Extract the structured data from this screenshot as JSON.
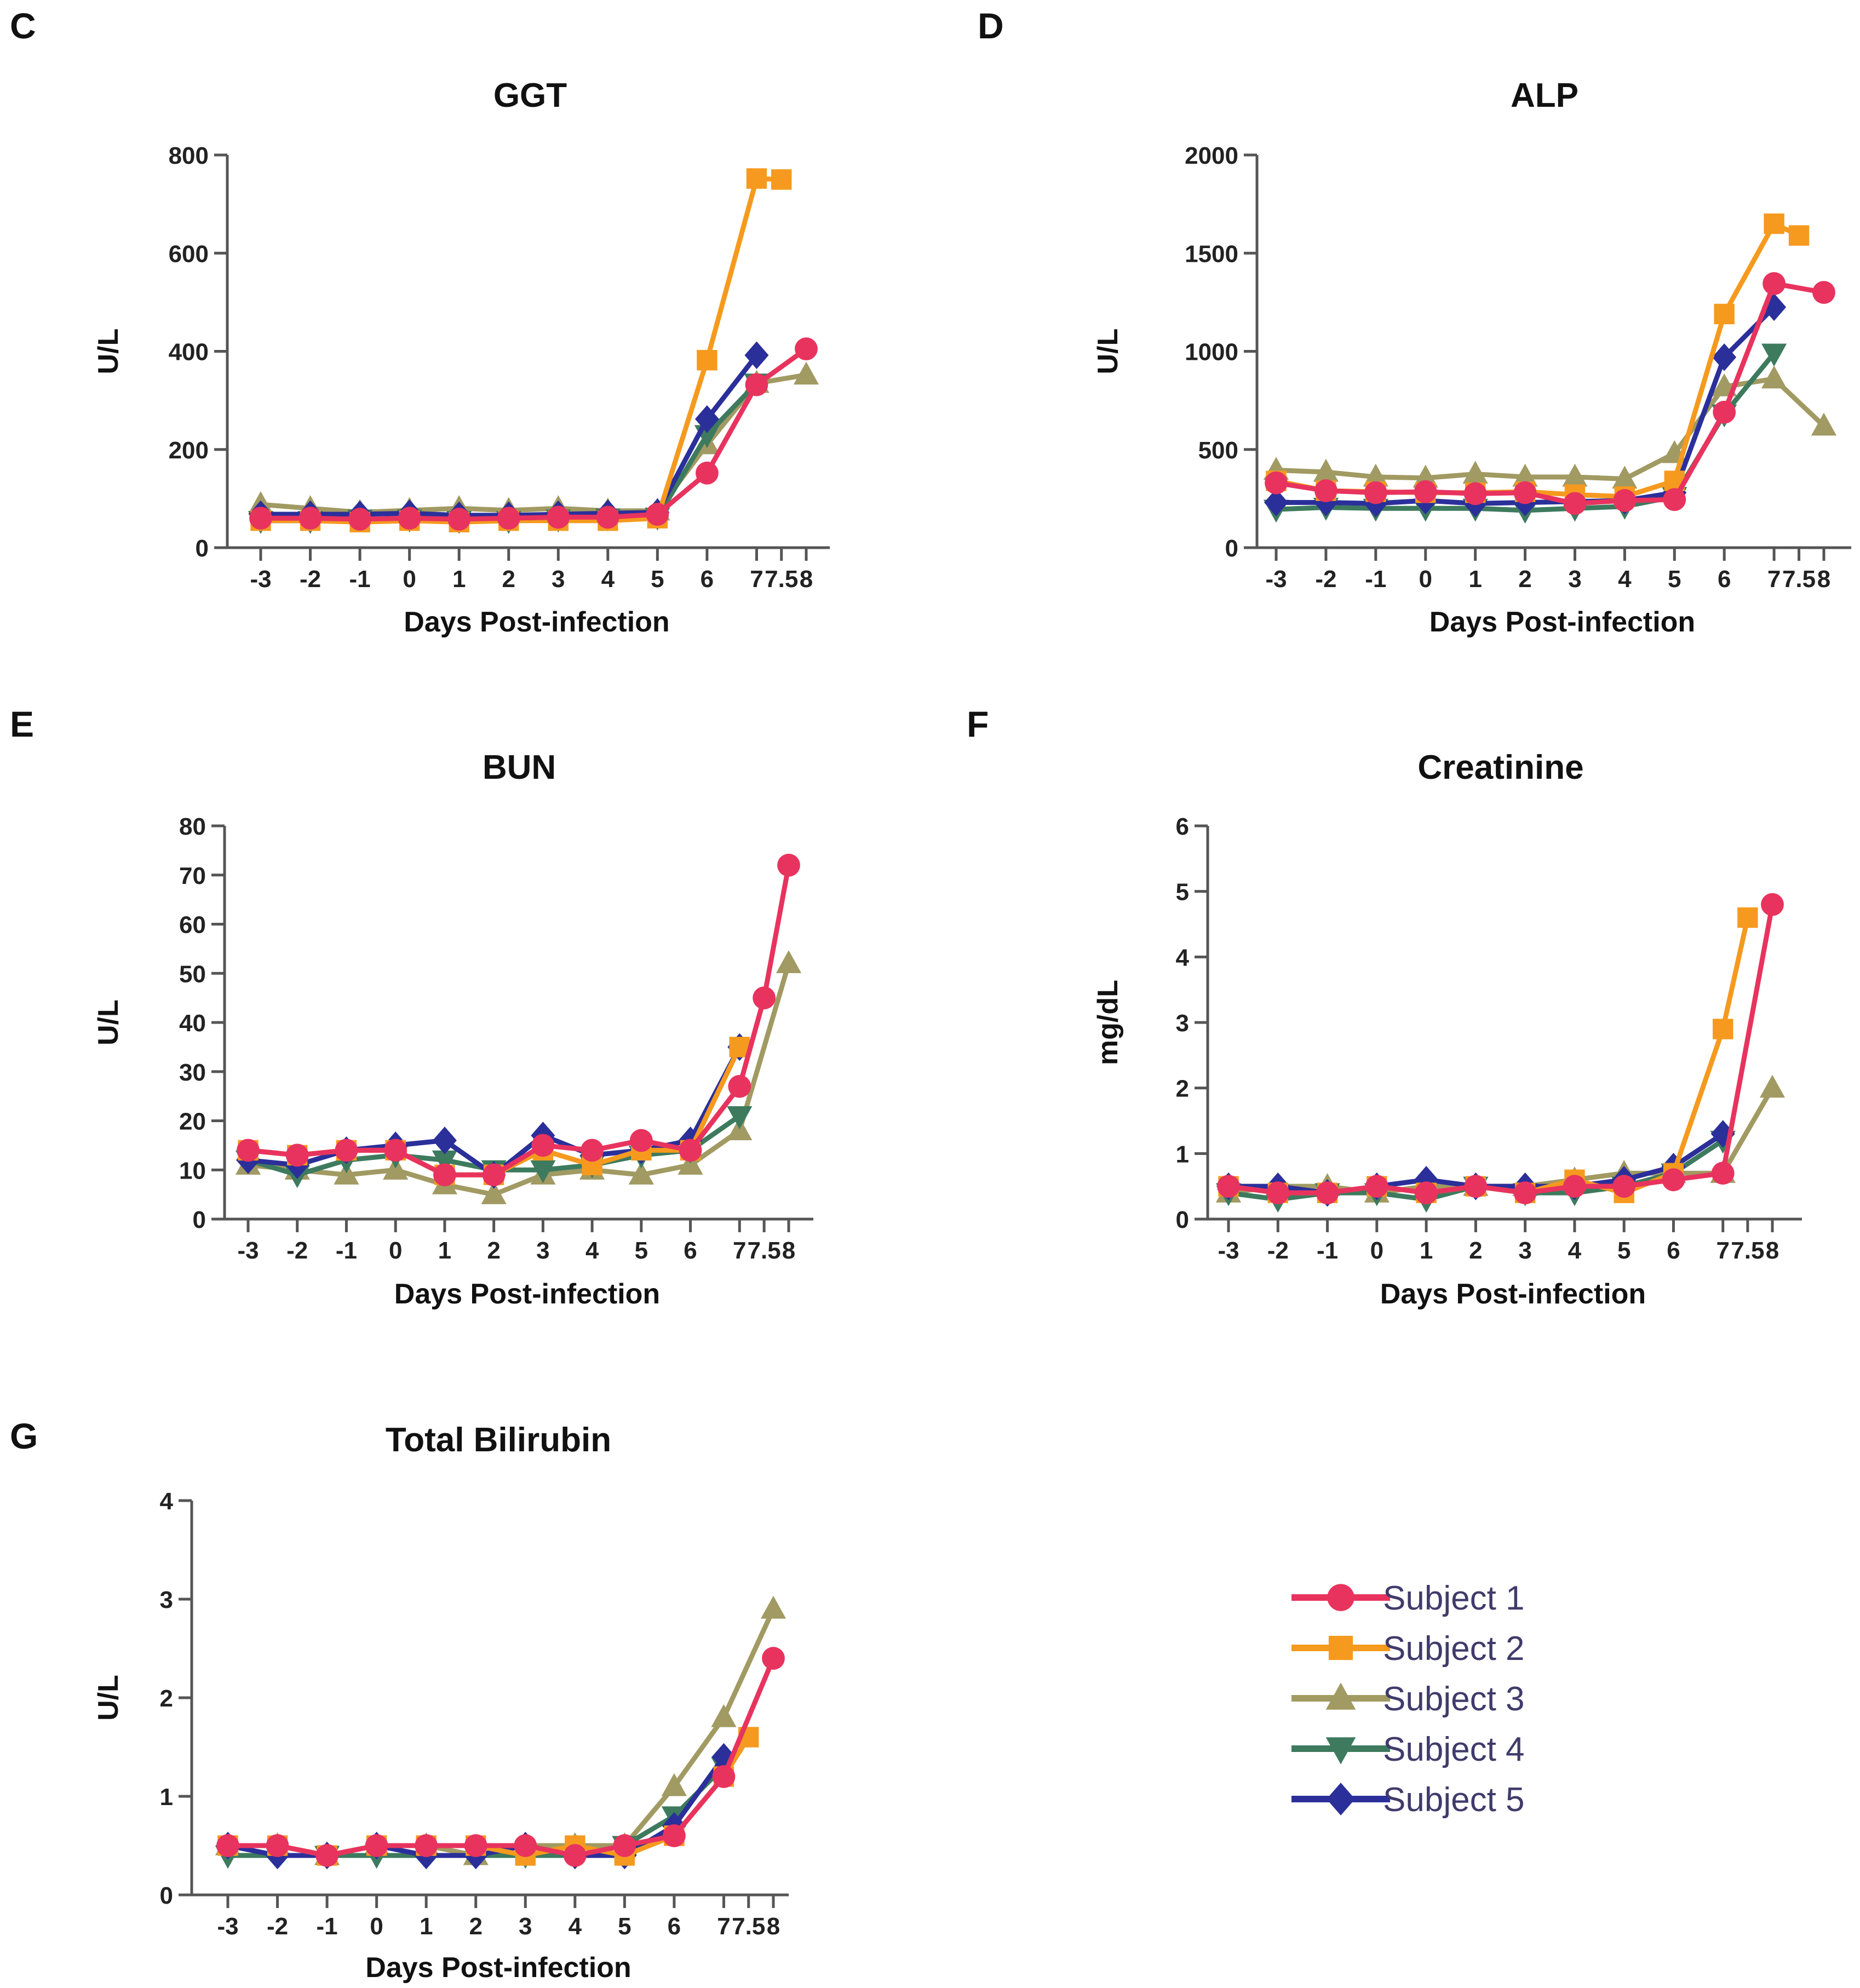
{
  "chart_data": [
    {
      "type": "line",
      "panel": "C",
      "title": "GGT",
      "xlabel": "Days Post-infection",
      "ylabel": "U/L",
      "ylim": [
        0,
        800
      ],
      "yticks": [
        0,
        200,
        400,
        600,
        800
      ],
      "x_tick_labels": [
        "-3",
        "-2",
        "-1",
        "0",
        "1",
        "2",
        "3",
        "4",
        "5",
        "6",
        "7",
        "7.5",
        "8"
      ],
      "series": [
        {
          "name": "Subject 3",
          "x": [
            -3,
            -2,
            -1,
            0,
            1,
            2,
            3,
            4,
            5,
            6,
            7,
            8
          ],
          "values": [
            88,
            80,
            72,
            76,
            80,
            76,
            80,
            75,
            75,
            210,
            335,
            352
          ]
        },
        {
          "name": "Subject 4",
          "x": [
            -3,
            -2,
            -1,
            0,
            1,
            2,
            3,
            4,
            5,
            6,
            7
          ],
          "values": [
            55,
            55,
            58,
            58,
            55,
            55,
            58,
            60,
            62,
            230,
            335
          ]
        },
        {
          "name": "Subject 5",
          "x": [
            -3,
            -2,
            -1,
            0,
            1,
            2,
            3,
            4,
            5,
            6,
            7
          ],
          "values": [
            68,
            68,
            68,
            70,
            66,
            66,
            68,
            70,
            72,
            262,
            392
          ]
        },
        {
          "name": "Subject 2",
          "x": [
            -3,
            -2,
            -1,
            0,
            1,
            2,
            3,
            4,
            5,
            6,
            7,
            7.5
          ],
          "values": [
            55,
            55,
            52,
            55,
            52,
            55,
            55,
            55,
            60,
            382,
            752,
            750
          ]
        },
        {
          "name": "Subject 1",
          "x": [
            -3,
            -2,
            -1,
            0,
            1,
            2,
            3,
            4,
            5,
            6,
            7,
            8
          ],
          "values": [
            60,
            60,
            58,
            60,
            58,
            60,
            62,
            62,
            68,
            152,
            332,
            405
          ]
        }
      ]
    },
    {
      "type": "line",
      "panel": "D",
      "title": "ALP",
      "xlabel": "Days Post-infection",
      "ylabel": "U/L",
      "ylim": [
        0,
        2000
      ],
      "yticks": [
        0,
        500,
        1000,
        1500,
        2000
      ],
      "x_tick_labels": [
        "-3",
        "-2",
        "-1",
        "0",
        "1",
        "2",
        "3",
        "4",
        "5",
        "6",
        "7",
        "7.5",
        "8"
      ],
      "series": [
        {
          "name": "Subject 3",
          "x": [
            -3,
            -2,
            -1,
            0,
            1,
            2,
            3,
            4,
            5,
            6,
            7,
            8
          ],
          "values": [
            395,
            385,
            360,
            355,
            375,
            360,
            360,
            350,
            480,
            820,
            860,
            620
          ]
        },
        {
          "name": "Subject 4",
          "x": [
            -3,
            -2,
            -1,
            0,
            1,
            2,
            3,
            4,
            5,
            6,
            7
          ],
          "values": [
            195,
            205,
            200,
            200,
            200,
            190,
            200,
            210,
            260,
            680,
            990
          ]
        },
        {
          "name": "Subject 5",
          "x": [
            -3,
            -2,
            -1,
            0,
            1,
            2,
            3,
            4,
            5,
            6,
            7
          ],
          "values": [
            230,
            230,
            225,
            240,
            225,
            230,
            235,
            240,
            280,
            970,
            1225
          ]
        },
        {
          "name": "Subject 2",
          "x": [
            -3,
            -2,
            -1,
            0,
            1,
            2,
            3,
            4,
            5,
            6,
            7,
            7.5
          ],
          "values": [
            340,
            290,
            285,
            280,
            280,
            285,
            270,
            260,
            340,
            1190,
            1650,
            1590
          ]
        },
        {
          "name": "Subject 1",
          "x": [
            -3,
            -2,
            -1,
            0,
            1,
            2,
            3,
            4,
            5,
            6,
            7,
            8
          ],
          "values": [
            330,
            290,
            280,
            285,
            275,
            280,
            225,
            240,
            245,
            690,
            1345,
            1300
          ]
        }
      ]
    },
    {
      "type": "line",
      "panel": "E",
      "title": "BUN",
      "xlabel": "Days Post-infection",
      "ylabel": "U/L",
      "ylim": [
        0,
        80
      ],
      "yticks": [
        0,
        10,
        20,
        30,
        40,
        50,
        60,
        70,
        80
      ],
      "x_tick_labels": [
        "-3",
        "-2",
        "-1",
        "0",
        "1",
        "2",
        "3",
        "4",
        "5",
        "6",
        "7",
        "7.5",
        "8"
      ],
      "series": [
        {
          "name": "Subject 3",
          "x": [
            -3,
            -2,
            -1,
            0,
            1,
            2,
            3,
            4,
            5,
            6,
            7,
            8
          ],
          "values": [
            11,
            10,
            9,
            10,
            7,
            5,
            9,
            10,
            9,
            11,
            18,
            52
          ]
        },
        {
          "name": "Subject 4",
          "x": [
            -3,
            -2,
            -1,
            0,
            1,
            2,
            3,
            4,
            5,
            6,
            7
          ],
          "values": [
            12,
            9,
            12,
            13,
            12,
            10,
            10,
            11,
            13,
            14,
            21
          ]
        },
        {
          "name": "Subject 5",
          "x": [
            -3,
            -2,
            -1,
            0,
            1,
            2,
            3,
            4,
            5,
            6,
            7
          ],
          "values": [
            12,
            11,
            14,
            15,
            16,
            9,
            17,
            13,
            14,
            16,
            35
          ]
        },
        {
          "name": "Subject 2",
          "x": [
            -3,
            -2,
            -1,
            0,
            1,
            2,
            3,
            4,
            5,
            6,
            7
          ],
          "values": [
            14,
            13,
            14,
            14,
            9,
            9,
            14,
            11,
            14,
            14,
            35
          ]
        },
        {
          "name": "Subject 1",
          "x": [
            -3,
            -2,
            -1,
            0,
            1,
            2,
            3,
            4,
            5,
            6,
            7,
            7.5,
            8
          ],
          "values": [
            14,
            13,
            14,
            14,
            9,
            9,
            15,
            14,
            16,
            14,
            27,
            45,
            72
          ]
        }
      ]
    },
    {
      "type": "line",
      "panel": "F",
      "title": "Creatinine",
      "xlabel": "Days Post-infection",
      "ylabel": "mg/dL",
      "ylim": [
        0,
        6
      ],
      "yticks": [
        0,
        1,
        2,
        3,
        4,
        5,
        6
      ],
      "x_tick_labels": [
        "-3",
        "-2",
        "-1",
        "0",
        "1",
        "2",
        "3",
        "4",
        "5",
        "6",
        "7",
        "7.5",
        "8"
      ],
      "series": [
        {
          "name": "Subject 3",
          "x": [
            -3,
            -2,
            -1,
            0,
            1,
            2,
            3,
            4,
            5,
            6,
            7,
            8
          ],
          "values": [
            0.4,
            0.5,
            0.5,
            0.4,
            0.5,
            0.5,
            0.5,
            0.6,
            0.7,
            0.7,
            0.7,
            2.0
          ]
        },
        {
          "name": "Subject 4",
          "x": [
            -3,
            -2,
            -1,
            0,
            1,
            2,
            3,
            4,
            5,
            6,
            7
          ],
          "values": [
            0.4,
            0.3,
            0.4,
            0.4,
            0.3,
            0.5,
            0.4,
            0.4,
            0.5,
            0.7,
            1.2
          ]
        },
        {
          "name": "Subject 5",
          "x": [
            -3,
            -2,
            -1,
            0,
            1,
            2,
            3,
            4,
            5,
            6,
            7
          ],
          "values": [
            0.5,
            0.5,
            0.4,
            0.5,
            0.6,
            0.5,
            0.5,
            0.5,
            0.6,
            0.8,
            1.3
          ]
        },
        {
          "name": "Subject 2",
          "x": [
            -3,
            -2,
            -1,
            0,
            1,
            2,
            3,
            4,
            5,
            6,
            7,
            7.5
          ],
          "values": [
            0.5,
            0.4,
            0.4,
            0.5,
            0.4,
            0.5,
            0.4,
            0.6,
            0.4,
            0.7,
            2.9,
            4.6
          ]
        },
        {
          "name": "Subject 1",
          "x": [
            -3,
            -2,
            -1,
            0,
            1,
            2,
            3,
            4,
            5,
            6,
            7,
            8
          ],
          "values": [
            0.5,
            0.4,
            0.4,
            0.5,
            0.4,
            0.5,
            0.4,
            0.5,
            0.5,
            0.6,
            0.7,
            4.8
          ]
        }
      ]
    },
    {
      "type": "line",
      "panel": "G",
      "title": "Total Bilirubin",
      "xlabel": "Days Post-infection",
      "ylabel": "U/L",
      "ylim": [
        0,
        4
      ],
      "yticks": [
        0,
        1,
        2,
        3,
        4
      ],
      "x_tick_labels": [
        "-3",
        "-2",
        "-1",
        "0",
        "1",
        "2",
        "3",
        "4",
        "5",
        "6",
        "7",
        "7.5",
        "8"
      ],
      "series": [
        {
          "name": "Subject 3",
          "x": [
            -3,
            -2,
            -1,
            0,
            1,
            2,
            3,
            4,
            5,
            6,
            7,
            8
          ],
          "values": [
            0.5,
            0.5,
            0.4,
            0.5,
            0.5,
            0.4,
            0.5,
            0.5,
            0.5,
            1.1,
            1.8,
            2.9
          ]
        },
        {
          "name": "Subject 4",
          "x": [
            -3,
            -2,
            -1,
            0,
            1,
            2,
            3,
            4,
            5,
            6,
            7
          ],
          "values": [
            0.4,
            0.4,
            0.4,
            0.4,
            0.4,
            0.4,
            0.4,
            0.4,
            0.5,
            0.8,
            1.3
          ]
        },
        {
          "name": "Subject 5",
          "x": [
            -3,
            -2,
            -1,
            0,
            1,
            2,
            3,
            4,
            5,
            6,
            7
          ],
          "values": [
            0.5,
            0.4,
            0.4,
            0.5,
            0.4,
            0.4,
            0.5,
            0.4,
            0.4,
            0.7,
            1.4
          ]
        },
        {
          "name": "Subject 2",
          "x": [
            -3,
            -2,
            -1,
            0,
            1,
            2,
            3,
            4,
            5,
            6,
            7,
            7.5
          ],
          "values": [
            0.5,
            0.5,
            0.4,
            0.5,
            0.5,
            0.5,
            0.4,
            0.5,
            0.4,
            0.6,
            1.2,
            1.6
          ]
        },
        {
          "name": "Subject 1",
          "x": [
            -3,
            -2,
            -1,
            0,
            1,
            2,
            3,
            4,
            5,
            6,
            7,
            8
          ],
          "values": [
            0.5,
            0.5,
            0.4,
            0.5,
            0.5,
            0.5,
            0.5,
            0.4,
            0.5,
            0.6,
            1.2,
            2.4
          ]
        }
      ]
    }
  ],
  "legend": {
    "entries": [
      {
        "name": "Subject 1",
        "color": "#e8335e",
        "marker": "circle"
      },
      {
        "name": "Subject 2",
        "color": "#f59a1e",
        "marker": "square"
      },
      {
        "name": "Subject 3",
        "color": "#a19a62",
        "marker": "triangle-up"
      },
      {
        "name": "Subject 4",
        "color": "#3d7a5e",
        "marker": "triangle-down"
      },
      {
        "name": "Subject 5",
        "color": "#2b2f9a",
        "marker": "diamond"
      }
    ]
  }
}
